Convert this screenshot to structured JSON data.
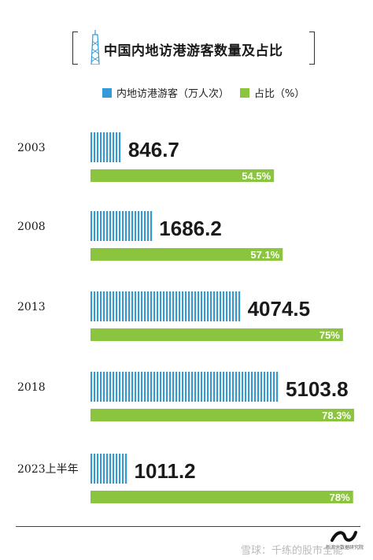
{
  "title": "中国内地访港游客数量及占比",
  "legend": {
    "blue_label": "内地访港游客（万人次）",
    "green_label": "占比（%）"
  },
  "colors": {
    "blue": "#3399d9",
    "green": "#8bc43f",
    "text": "#1a1a1a"
  },
  "icon": "hong-kong-tower-icon",
  "chart_data": {
    "type": "bar",
    "orientation": "horizontal",
    "categories": [
      "2003",
      "2008",
      "2013",
      "2018",
      "2023上半年"
    ],
    "series": [
      {
        "name": "内地访港游客（万人次）",
        "values": [
          846.7,
          1686.2,
          4074.5,
          5103.8,
          1011.2
        ],
        "labels": [
          "846.7",
          "1686.2",
          "4074.5",
          "5103.8",
          "1011.2"
        ]
      },
      {
        "name": "占比（%）",
        "values": [
          54.5,
          57.1,
          75,
          78.3,
          78
        ],
        "labels": [
          "54.5%",
          "57.1%",
          "75%",
          "78.3%",
          "78%"
        ]
      }
    ],
    "grid": false,
    "legend_position": "top"
  },
  "footer": {
    "logo_text": "新浪大数据研究院",
    "watermark": "雪球：千练的股市全能"
  }
}
